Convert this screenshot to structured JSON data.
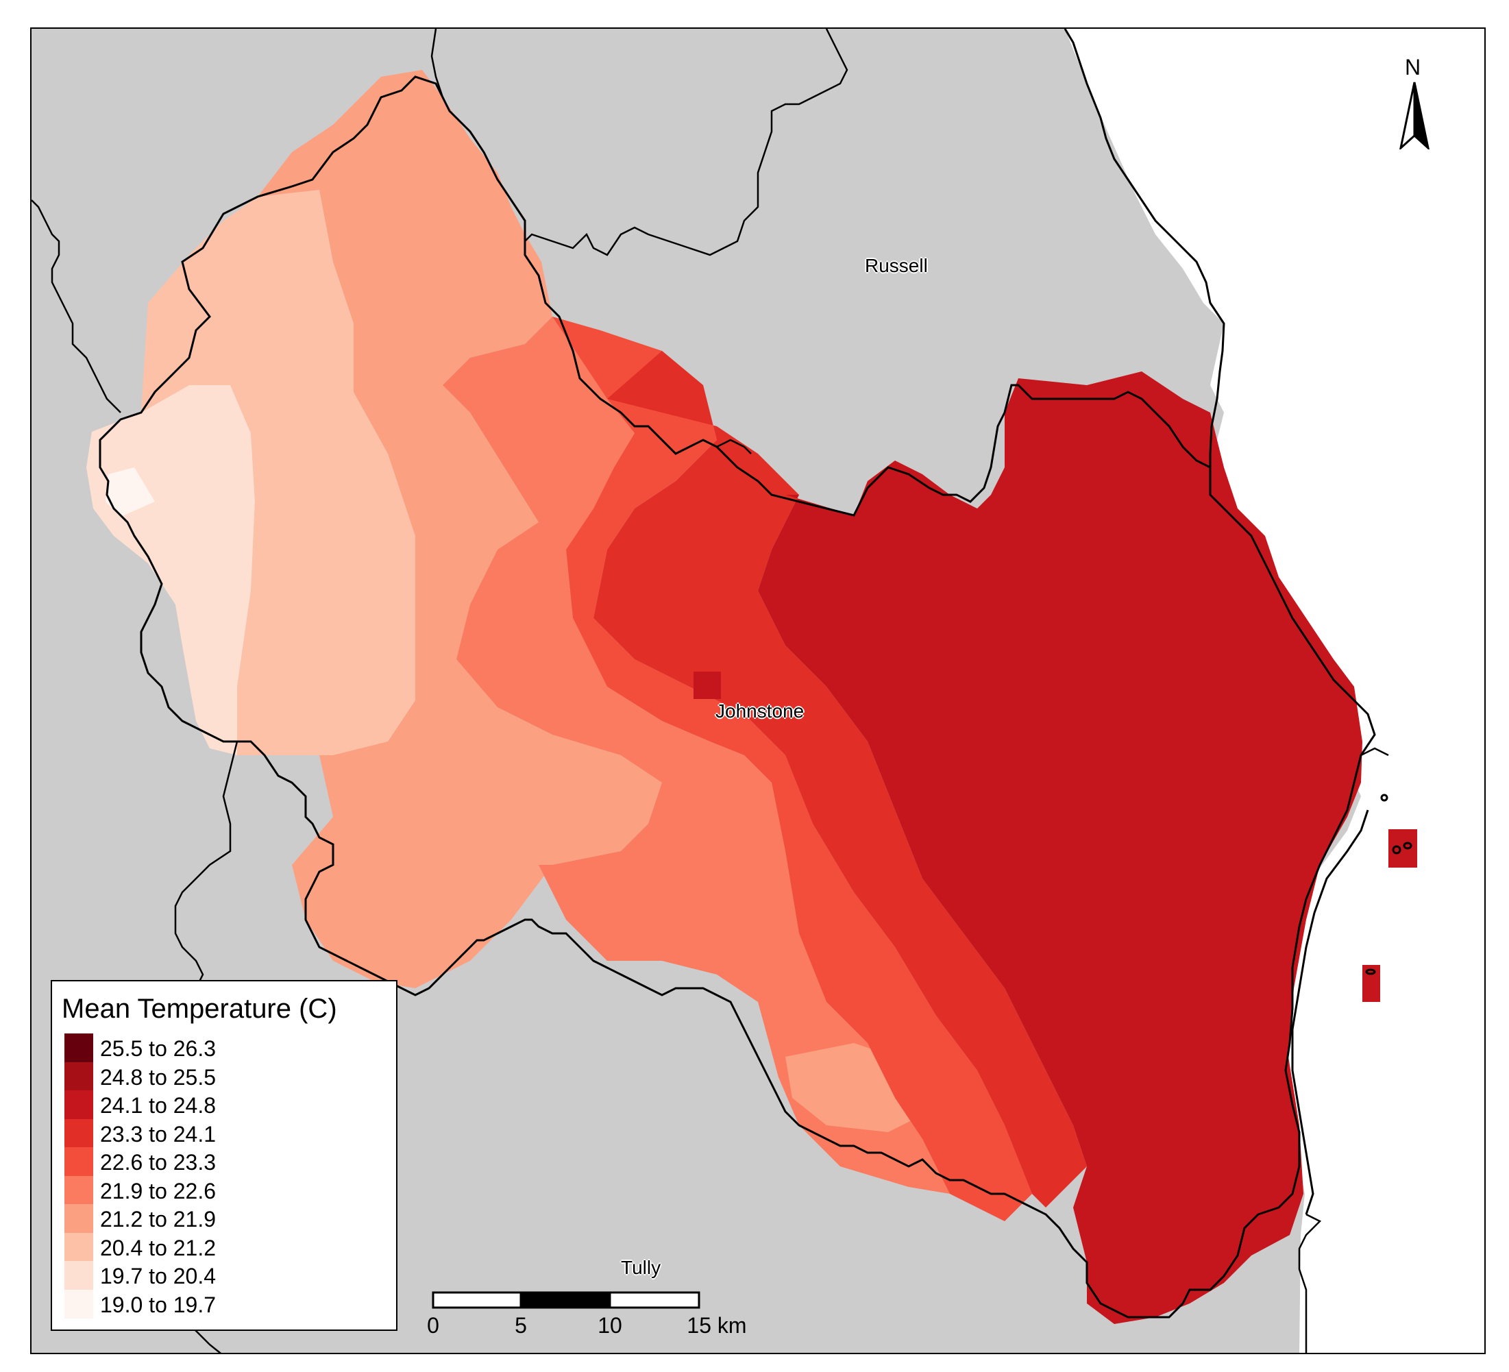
{
  "map": {
    "places": {
      "russell": "Russell",
      "johnstone": "Johnstone",
      "tully": "Tully"
    },
    "north_letter": "N",
    "colors": {
      "background_land": "#cccccc",
      "sea": "#ffffff",
      "boundary": "#000000"
    }
  },
  "legend": {
    "title": "Mean Temperature (C)",
    "classes": [
      {
        "label": "25.5 to 26.3",
        "color": "#67000d"
      },
      {
        "label": "24.8 to 25.5",
        "color": "#a50f15"
      },
      {
        "label": "24.1 to 24.8",
        "color": "#c4161c"
      },
      {
        "label": "23.3 to 24.1",
        "color": "#e12e27"
      },
      {
        "label": "22.6 to 23.3",
        "color": "#f34d3b"
      },
      {
        "label": "21.9 to 22.6",
        "color": "#fa7b5f"
      },
      {
        "label": "21.2 to 21.9",
        "color": "#fca082"
      },
      {
        "label": "20.4 to 21.2",
        "color": "#fdc1a8"
      },
      {
        "label": "19.7 to 20.4",
        "color": "#fee0d2"
      },
      {
        "label": "19.0 to 19.7",
        "color": "#fff5f0"
      }
    ]
  },
  "scalebar": {
    "labels": [
      "0",
      "5",
      "10",
      "15 km"
    ]
  }
}
